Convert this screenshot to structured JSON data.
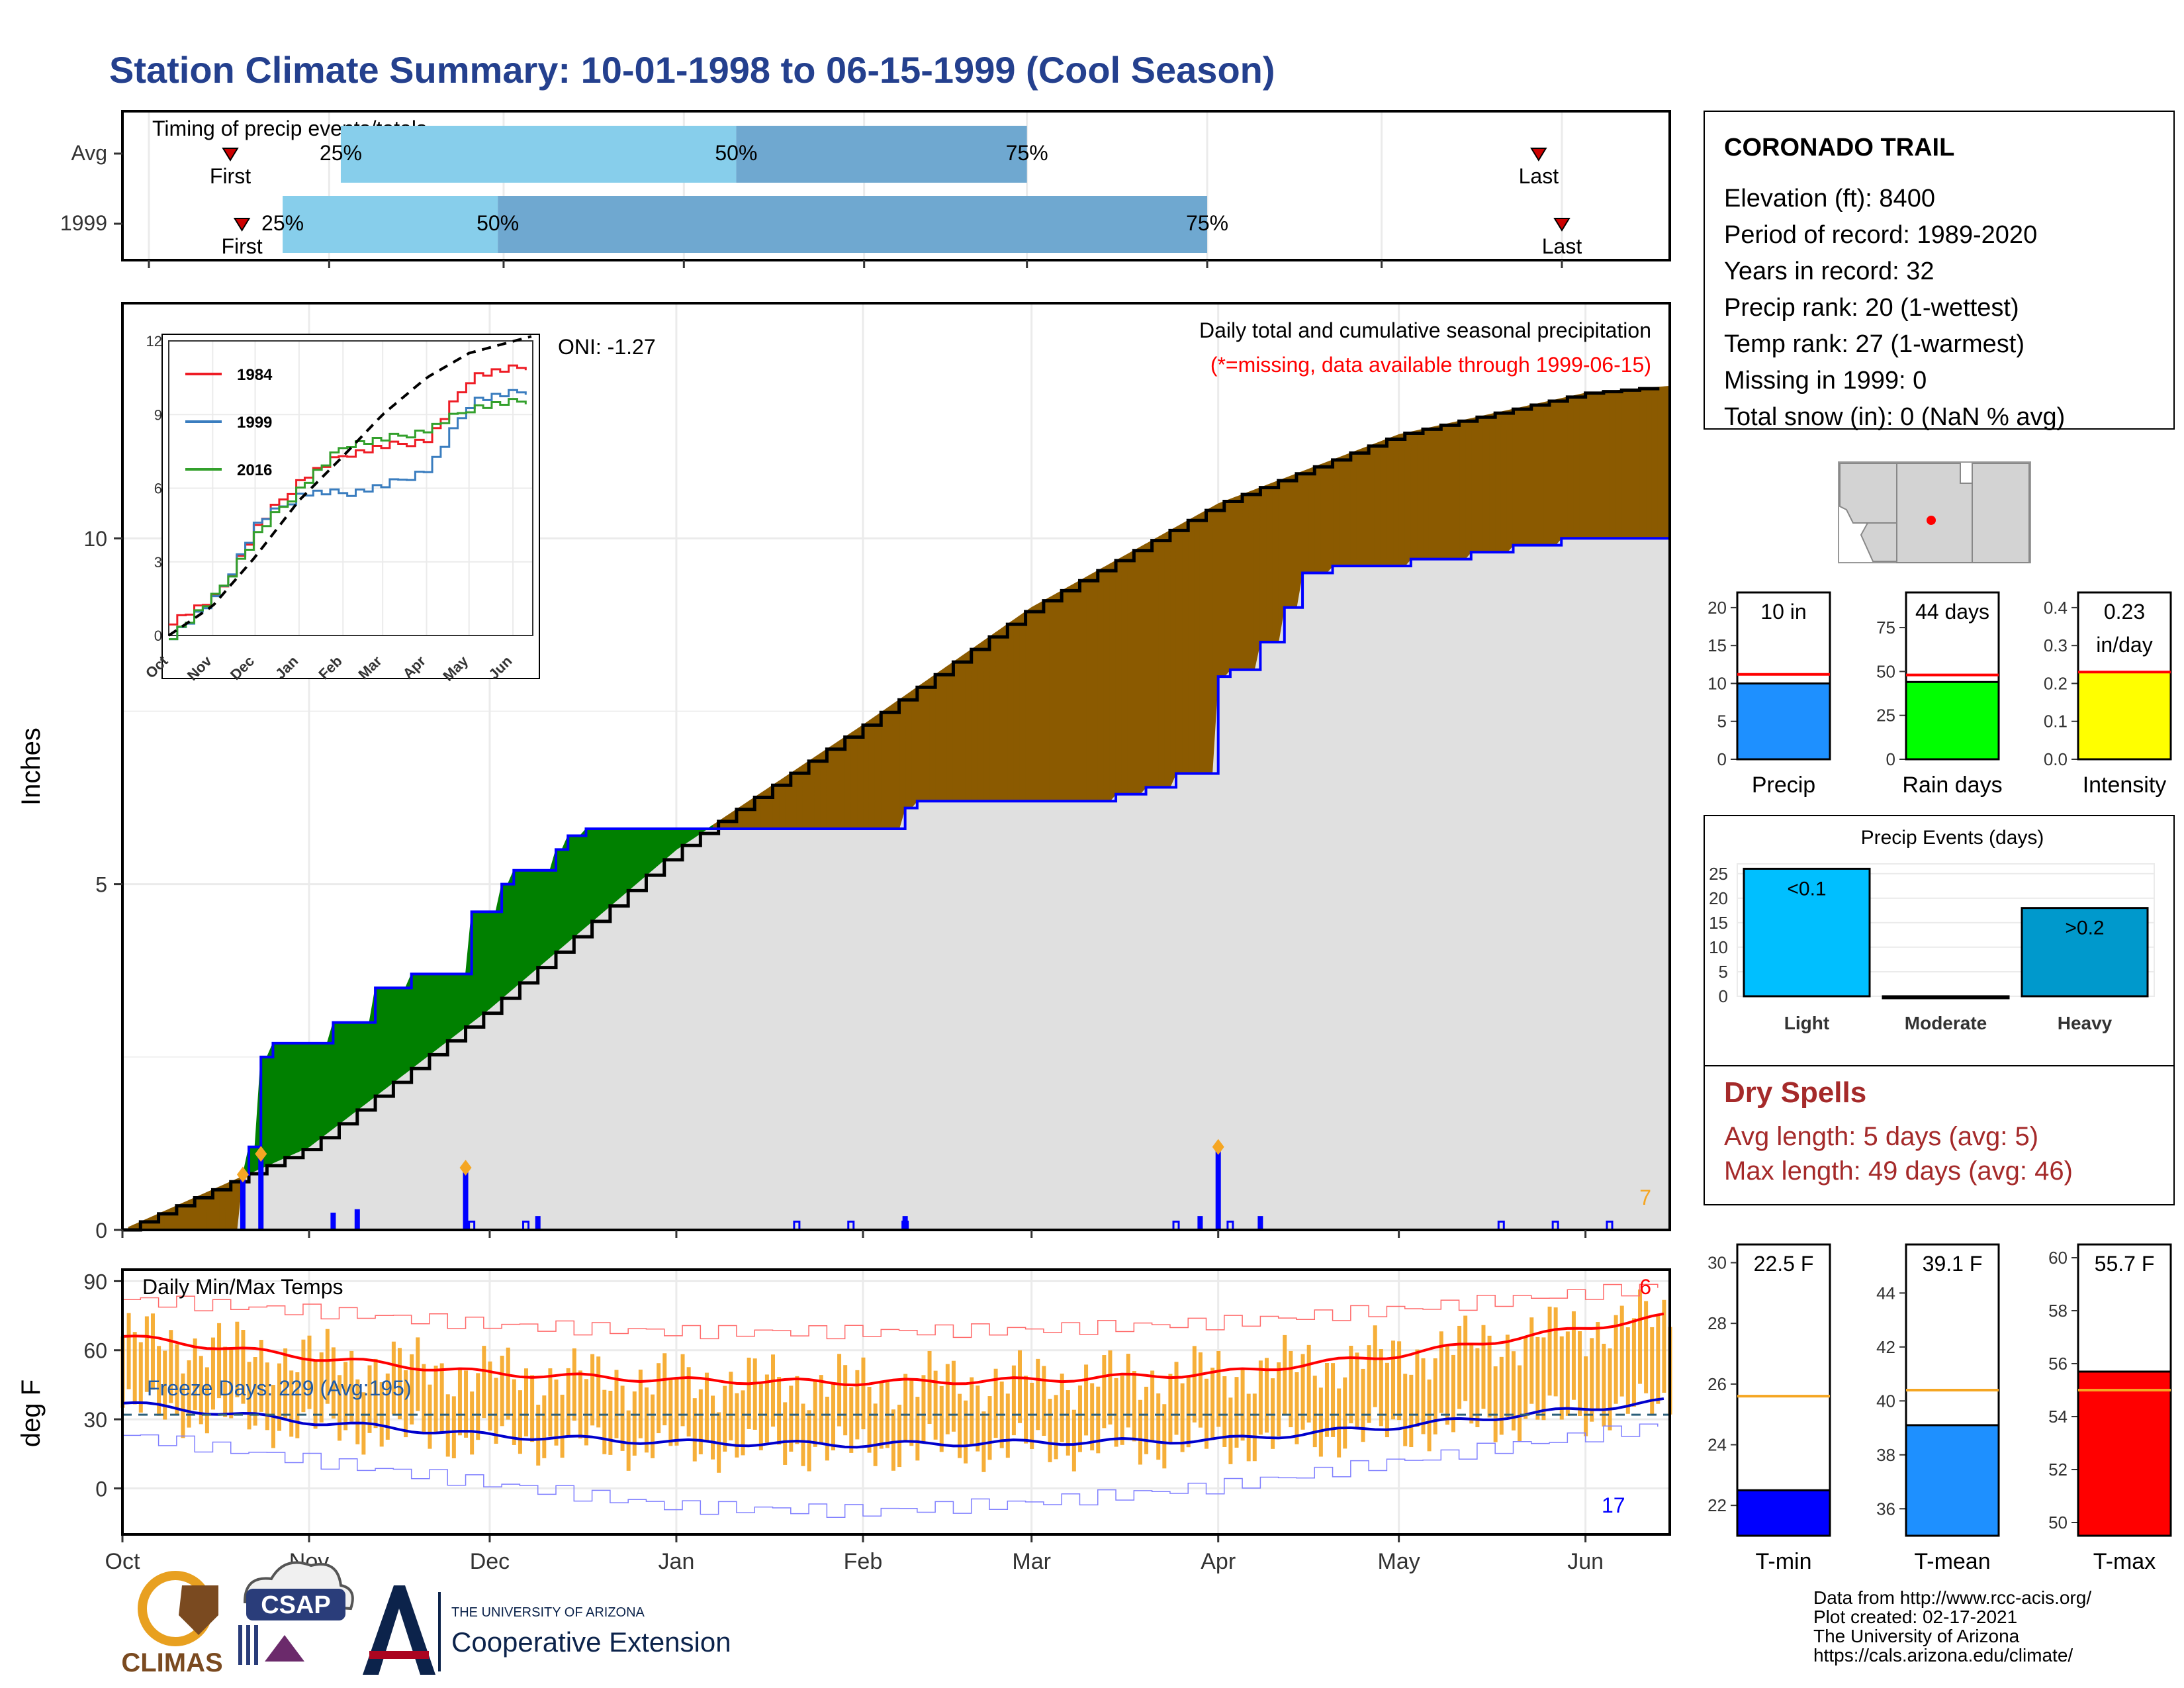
{
  "title": "Station Climate Summary: 10-01-1998 to 06-15-1999 (Cool Season)",
  "timing_panel": {
    "label": "Timing of precip events/totals",
    "rows": [
      {
        "name": "Avg",
        "first": "First",
        "last": "Last",
        "p25": "25%",
        "p50": "50%",
        "p75": "75%",
        "first_date": "1998-10-15",
        "last_date": "1999-05-28",
        "d25": "1998-11-03",
        "d50": "1999-01-10",
        "d75": "1999-03-01"
      },
      {
        "name": "1999",
        "first": "First",
        "last": "Last",
        "p25": "25%",
        "p50": "50%",
        "p75": "75%",
        "first_date": "1998-10-17",
        "last_date": "1999-06-01",
        "d25": "1998-10-24",
        "d50": "1998-11-30",
        "d75": "1999-04-01"
      }
    ]
  },
  "station": {
    "name": "CORONADO TRAIL",
    "lines": [
      "Elevation (ft): 8400",
      "Period of record: 1989-2020",
      "Years in record: 32",
      "Precip rank: 20 (1-wettest)",
      "Temp rank: 27 (1-warmest)",
      "Missing in 1999: 0",
      "Total snow (in): 0 (NaN % avg)"
    ]
  },
  "precip_panel": {
    "ylabel": "Inches",
    "oni": "ONI: -1.27",
    "header1": "Daily total and cumulative seasonal precipitation",
    "header2": "(*=missing, data available through 1999-06-15)",
    "corner_value": "7",
    "y_ticks": [
      "0",
      "5",
      "10"
    ],
    "x_ticks": [
      "Oct",
      "Nov",
      "Dec",
      "Jan",
      "Feb",
      "Mar",
      "Apr",
      "May",
      "Jun"
    ]
  },
  "inset": {
    "y_ticks": [
      "0",
      "3",
      "6",
      "9",
      "12"
    ],
    "x_ticks": [
      "Oct",
      "Nov",
      "Dec",
      "Jan",
      "Feb",
      "Mar",
      "Apr",
      "May",
      "Jun"
    ],
    "legend": [
      "1984",
      "1999",
      "2016"
    ]
  },
  "temp_panel": {
    "ylabel": "deg F",
    "label": "Daily Min/Max Temps",
    "freeze_days": "Freeze Days: 229 (Avg:195)",
    "max_count": "6",
    "min_count": "17",
    "y_ticks": [
      "0",
      "30",
      "60",
      "90"
    ],
    "x_ticks": [
      "Oct",
      "Nov",
      "Dec",
      "Jan",
      "Feb",
      "Mar",
      "Apr",
      "May",
      "Jun"
    ]
  },
  "precip_bars": [
    {
      "label": "10 in",
      "name": "Precip",
      "value": 10,
      "avg": 11.2,
      "ticks": [
        "0",
        "5",
        "10",
        "15",
        "20"
      ],
      "ymax": 22,
      "color": "#1e90ff"
    },
    {
      "label": "44 days",
      "name": "Rain days",
      "value": 44,
      "avg": 48,
      "ticks": [
        "0",
        "25",
        "50",
        "75"
      ],
      "ymax": 95,
      "color": "#00ff00"
    },
    {
      "label1": "0.23",
      "label2": "in/day",
      "name": "Intensity",
      "value": 0.23,
      "avg": 0.23,
      "ticks": [
        "0.0",
        "0.1",
        "0.2",
        "0.3",
        "0.4"
      ],
      "ymax": 0.44,
      "color": "#ffff00"
    }
  ],
  "events": {
    "title": "Precip Events (days)",
    "ticks": [
      "0",
      "5",
      "10",
      "15",
      "20",
      "25"
    ],
    "bars": [
      {
        "name": "Light",
        "label": "<0.1",
        "value": 26,
        "color": "#00bfff"
      },
      {
        "name": "Moderate",
        "label": "",
        "value": 0,
        "color": "#1e90ff"
      },
      {
        "name": "Heavy",
        "label": ">0.2",
        "value": 18,
        "color": "#0099cc"
      }
    ]
  },
  "dry_spells": {
    "title": "Dry Spells",
    "avg": "Avg length: 5 days (avg: 5)",
    "max": "Max length: 49 days (avg: 46)"
  },
  "temp_bars": [
    {
      "label": "22.5 F",
      "name": "T-min",
      "value": 22.5,
      "avg": 25.6,
      "ticks": [
        "22",
        "24",
        "26",
        "28",
        "30"
      ],
      "ymin": 21,
      "ymax": 30.6,
      "color": "#0000ff"
    },
    {
      "label": "39.1 F",
      "name": "T-mean",
      "value": 39.1,
      "avg": 40.4,
      "ticks": [
        "36",
        "38",
        "40",
        "42",
        "44"
      ],
      "ymin": 35,
      "ymax": 45.8,
      "color": "#1e90ff"
    },
    {
      "label": "55.7 F",
      "name": "T-max",
      "value": 55.7,
      "avg": 55.0,
      "ticks": [
        "50",
        "52",
        "54",
        "56",
        "58",
        "60"
      ],
      "ymin": 49.5,
      "ymax": 60.5,
      "color": "#ff0000"
    }
  ],
  "footer": {
    "credits": [
      "Data from http://www.rcc-acis.org/",
      "Plot created: 02-17-2021",
      "The University of Arizona",
      "https://cals.arizona.edu/climate/"
    ],
    "climas": "CLIMAS",
    "csap": "CSAP",
    "ua_small": "THE UNIVERSITY OF ARIZONA",
    "ua_big": "Cooperative Extension"
  },
  "colors": {
    "title": "#24408e",
    "dry": "#a52a2a",
    "orange": "#f5a623",
    "brown": "#8b5a00",
    "green": "#008000",
    "gray": "#e0e0e0"
  },
  "chart_data": [
    {
      "type": "area",
      "title": "Daily total and cumulative seasonal precipitation",
      "ylabel": "Inches",
      "ylim": [
        0,
        13.4
      ],
      "series": [
        {
          "name": "1999",
          "x": [
            "1998-10-01",
            "1998-10-21",
            "1998-10-22",
            "1998-10-24",
            "1998-10-26",
            "1998-11-05",
            "1998-11-12",
            "1998-11-18",
            "1998-11-27",
            "1998-11-28",
            "1998-12-03",
            "1998-12-05",
            "1998-12-12",
            "1998-12-14",
            "1998-12-17",
            "1998-12-24",
            "1999-01-14",
            "1999-01-25",
            "1999-02-08",
            "1999-02-10",
            "1999-03-15",
            "1999-03-20",
            "1999-03-25",
            "1999-04-01",
            "1999-04-03",
            "1999-04-08",
            "1999-04-12",
            "1999-04-15",
            "1999-04-20",
            "1999-05-03",
            "1999-05-13",
            "1999-05-20",
            "1999-05-28",
            "1999-06-15"
          ],
          "y": [
            0,
            0.8,
            1.2,
            2.5,
            2.7,
            3.0,
            3.5,
            3.7,
            3.7,
            4.6,
            5.0,
            5.2,
            5.5,
            5.7,
            5.8,
            5.8,
            5.8,
            5.8,
            6.1,
            6.2,
            6.3,
            6.4,
            6.6,
            8.0,
            8.1,
            8.5,
            9.0,
            9.5,
            9.6,
            9.7,
            9.8,
            9.9,
            10.0,
            10.0
          ]
        },
        {
          "name": "Avg",
          "x": [
            "1998-10-01",
            "1998-11-01",
            "1998-12-01",
            "1999-01-01",
            "1999-02-01",
            "1999-03-01",
            "1999-04-01",
            "1999-05-01",
            "1999-06-01",
            "1999-06-15"
          ],
          "y": [
            0,
            1.2,
            3.2,
            5.5,
            7.3,
            9.0,
            10.5,
            11.5,
            12.1,
            12.2
          ]
        }
      ],
      "daily_spikes": [
        {
          "x": "1998-10-21",
          "y": 0.8
        },
        {
          "x": "1998-10-24",
          "y": 1.1
        },
        {
          "x": "1998-11-27",
          "y": 0.9
        },
        {
          "x": "1999-04-01",
          "y": 1.2
        },
        {
          "x": "1998-11-05",
          "y": 0.25
        },
        {
          "x": "1998-11-09",
          "y": 0.3
        },
        {
          "x": "1998-12-09",
          "y": 0.2
        },
        {
          "x": "1999-02-08",
          "y": 0.2
        },
        {
          "x": "1999-03-29",
          "y": 0.2
        },
        {
          "x": "1999-04-08",
          "y": 0.2
        }
      ]
    },
    {
      "type": "line",
      "title": "",
      "ylim": [
        0,
        12
      ],
      "series": [
        {
          "name": "1984",
          "x": [
            "1998-10-01",
            "1998-11-01",
            "1998-12-01",
            "1999-01-01",
            "1999-02-01",
            "1999-03-01",
            "1999-04-01",
            "1999-05-01",
            "1999-06-15"
          ],
          "y": [
            0.6,
            1.5,
            4.5,
            6.4,
            7.4,
            7.7,
            8.0,
            10.6,
            11.0
          ]
        },
        {
          "name": "1999",
          "x": [
            "1998-10-01",
            "1998-11-01",
            "1998-12-01",
            "1999-01-01",
            "1999-02-01",
            "1999-03-01",
            "1999-04-01",
            "1999-05-01",
            "1999-06-15"
          ],
          "y": [
            0.0,
            1.5,
            4.6,
            5.8,
            5.8,
            6.1,
            6.8,
            9.6,
            10.0
          ]
        },
        {
          "name": "2016",
          "x": [
            "1998-10-01",
            "1998-11-01",
            "1998-12-01",
            "1999-01-01",
            "1999-02-01",
            "1999-03-01",
            "1999-04-01",
            "1999-05-01",
            "1999-06-15"
          ],
          "y": [
            0.0,
            1.6,
            4.2,
            6.1,
            7.8,
            8.0,
            8.4,
            9.3,
            9.6
          ]
        },
        {
          "name": "Avg",
          "x": [
            "1998-10-01",
            "1998-11-01",
            "1998-12-01",
            "1999-01-01",
            "1999-02-01",
            "1999-03-01",
            "1999-04-01",
            "1999-05-01",
            "1999-06-15"
          ],
          "y": [
            0,
            1.2,
            3.2,
            5.5,
            7.3,
            9.0,
            10.5,
            11.5,
            12.2
          ]
        }
      ]
    },
    {
      "type": "line",
      "title": "Daily Min/Max Temps",
      "ylabel": "deg F",
      "ylim": [
        -20,
        95
      ],
      "series": [
        {
          "name": "avg max",
          "x": [
            "1998-10-01",
            "1998-11-01",
            "1998-12-01",
            "1999-01-01",
            "1999-02-01",
            "1999-03-01",
            "1999-04-01",
            "1999-05-01",
            "1999-06-15"
          ],
          "y": [
            66,
            57,
            50,
            47,
            46,
            47,
            50,
            58,
            75
          ]
        },
        {
          "name": "avg min",
          "x": [
            "1998-10-01",
            "1998-11-01",
            "1998-12-01",
            "1999-01-01",
            "1999-02-01",
            "1999-03-01",
            "1999-04-01",
            "1999-05-01",
            "1999-06-15"
          ],
          "y": [
            37,
            29,
            23,
            20,
            19,
            20,
            21,
            27,
            38
          ]
        },
        {
          "name": "record max",
          "x": [
            "1998-10-01",
            "1998-11-01",
            "1998-12-01",
            "1999-01-01",
            "1999-02-01",
            "1999-03-01",
            "1999-04-01",
            "1999-05-01",
            "1999-06-15"
          ],
          "y": [
            82,
            77,
            71,
            68,
            68,
            69,
            72,
            78,
            88
          ]
        },
        {
          "name": "record min",
          "x": [
            "1998-10-01",
            "1998-11-01",
            "1998-12-01",
            "1999-01-01",
            "1999-02-01",
            "1999-03-01",
            "1999-04-01",
            "1999-05-01",
            "1999-06-15"
          ],
          "y": [
            23,
            12,
            2,
            -8,
            -10,
            -6,
            1,
            12,
            28
          ]
        }
      ],
      "freeze_line": 32
    },
    {
      "type": "bar",
      "categories": [
        "Precip"
      ],
      "values": [
        10
      ],
      "ylim": [
        0,
        22
      ]
    },
    {
      "type": "bar",
      "categories": [
        "Rain days"
      ],
      "values": [
        44
      ],
      "ylim": [
        0,
        95
      ]
    },
    {
      "type": "bar",
      "categories": [
        "Intensity"
      ],
      "values": [
        0.23
      ],
      "ylim": [
        0,
        0.44
      ]
    },
    {
      "type": "bar",
      "title": "Precip Events (days)",
      "categories": [
        "Light",
        "Moderate",
        "Heavy"
      ],
      "values": [
        26,
        0,
        18
      ]
    },
    {
      "type": "bar",
      "categories": [
        "T-min"
      ],
      "values": [
        22.5
      ]
    },
    {
      "type": "bar",
      "categories": [
        "T-mean"
      ],
      "values": [
        39.1
      ]
    },
    {
      "type": "bar",
      "categories": [
        "T-max"
      ],
      "values": [
        55.7
      ]
    }
  ]
}
